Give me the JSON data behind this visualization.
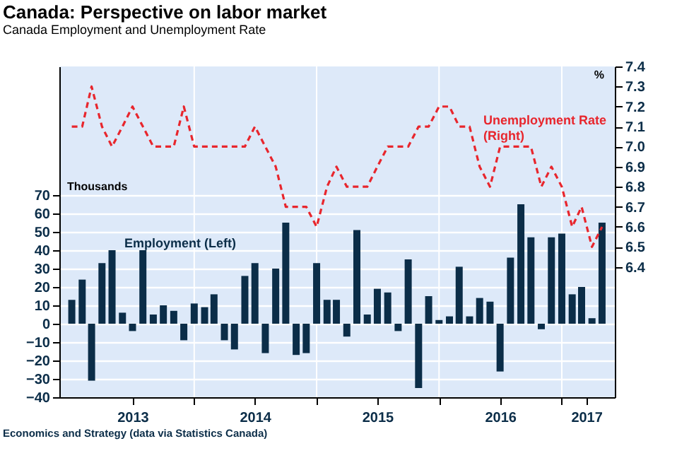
{
  "chart_data": {
    "type": "bar",
    "title": "Canada: Perspective on labor market",
    "subtitle": "Canada Employment and Unemployment Rate",
    "ylabel": "Thousands",
    "y2label": "%",
    "annotations": [
      "Economics and Strategy (data via Statistics Canada)"
    ],
    "x": [
      "2013-01",
      "2013-02",
      "2013-03",
      "2013-04",
      "2013-05",
      "2013-06",
      "2013-07",
      "2013-08",
      "2013-09",
      "2013-10",
      "2013-11",
      "2013-12",
      "2014-01",
      "2014-02",
      "2014-03",
      "2014-04",
      "2014-05",
      "2014-06",
      "2014-07",
      "2014-08",
      "2014-09",
      "2014-10",
      "2014-11",
      "2014-12",
      "2015-01",
      "2015-02",
      "2015-03",
      "2015-04",
      "2015-05",
      "2015-06",
      "2015-07",
      "2015-08",
      "2015-09",
      "2015-10",
      "2015-11",
      "2015-12",
      "2016-01",
      "2016-02",
      "2016-03",
      "2016-04",
      "2016-05",
      "2016-06",
      "2016-07",
      "2016-08",
      "2016-09",
      "2016-10",
      "2016-11",
      "2016-12",
      "2017-01",
      "2017-02",
      "2017-03",
      "2017-04",
      "2017-05"
    ],
    "series": [
      {
        "name": "Employment (Left)",
        "color": "#0b2d48",
        "values": [
          13,
          24,
          -31,
          33,
          40,
          6,
          -4,
          40,
          5,
          10,
          7,
          -9,
          11,
          9,
          16,
          -9,
          -14,
          26,
          33,
          -16,
          30,
          55,
          -17,
          -16,
          33,
          13,
          13,
          -7,
          51,
          5,
          19,
          17,
          -4,
          35,
          -35,
          15,
          2,
          4,
          31,
          4,
          14,
          12,
          -26,
          36,
          65,
          47,
          -3,
          47,
          49,
          16,
          20,
          3,
          55
        ]
      },
      {
        "name": "Unemployment Rate (Right)",
        "type": "line",
        "axis": "y2",
        "color": "#e8262d",
        "line_style": "dashed",
        "values": [
          7.1,
          7.1,
          7.3,
          7.1,
          7.0,
          7.1,
          7.2,
          7.1,
          7.0,
          7.0,
          7.0,
          7.2,
          7.0,
          7.0,
          7.0,
          7.0,
          7.0,
          7.0,
          7.1,
          7.0,
          6.9,
          6.7,
          6.7,
          6.7,
          6.6,
          6.8,
          6.9,
          6.8,
          6.8,
          6.8,
          6.9,
          7.0,
          7.0,
          7.0,
          7.1,
          7.1,
          7.2,
          7.2,
          7.1,
          7.1,
          6.9,
          6.8,
          7.0,
          7.0,
          7.0,
          7.0,
          6.8,
          6.9,
          6.8,
          6.6,
          6.7,
          6.5,
          6.6
        ]
      }
    ],
    "xlim": [
      "2012-12-16",
      "2017-05-18"
    ],
    "xticks": [
      {
        "value": "2013-07-01",
        "label": "2013"
      },
      {
        "value": "2014-01-01",
        "label": null
      },
      {
        "value": "2014-07-01",
        "label": "2014"
      },
      {
        "value": "2015-01-01",
        "label": null
      },
      {
        "value": "2015-07-01",
        "label": "2015"
      },
      {
        "value": "2016-01-01",
        "label": null
      },
      {
        "value": "2016-07-01",
        "label": "2016"
      },
      {
        "value": "2017-01-01",
        "label": null
      },
      {
        "value": "2017-03-15",
        "label": "2017"
      }
    ],
    "ylim": [
      -40,
      140
    ],
    "yticks": [
      -40,
      -30,
      -20,
      -10,
      0,
      10,
      20,
      30,
      40,
      50,
      60,
      70
    ],
    "y2lim": [
      5.75,
      7.4
    ],
    "y2ticks": [
      6.4,
      6.5,
      6.6,
      6.7,
      6.8,
      6.9,
      {
        "value": 7,
        "label": "7.0"
      },
      7.1,
      7.2,
      7.3,
      7.4
    ],
    "grid": true,
    "marker": "none"
  }
}
